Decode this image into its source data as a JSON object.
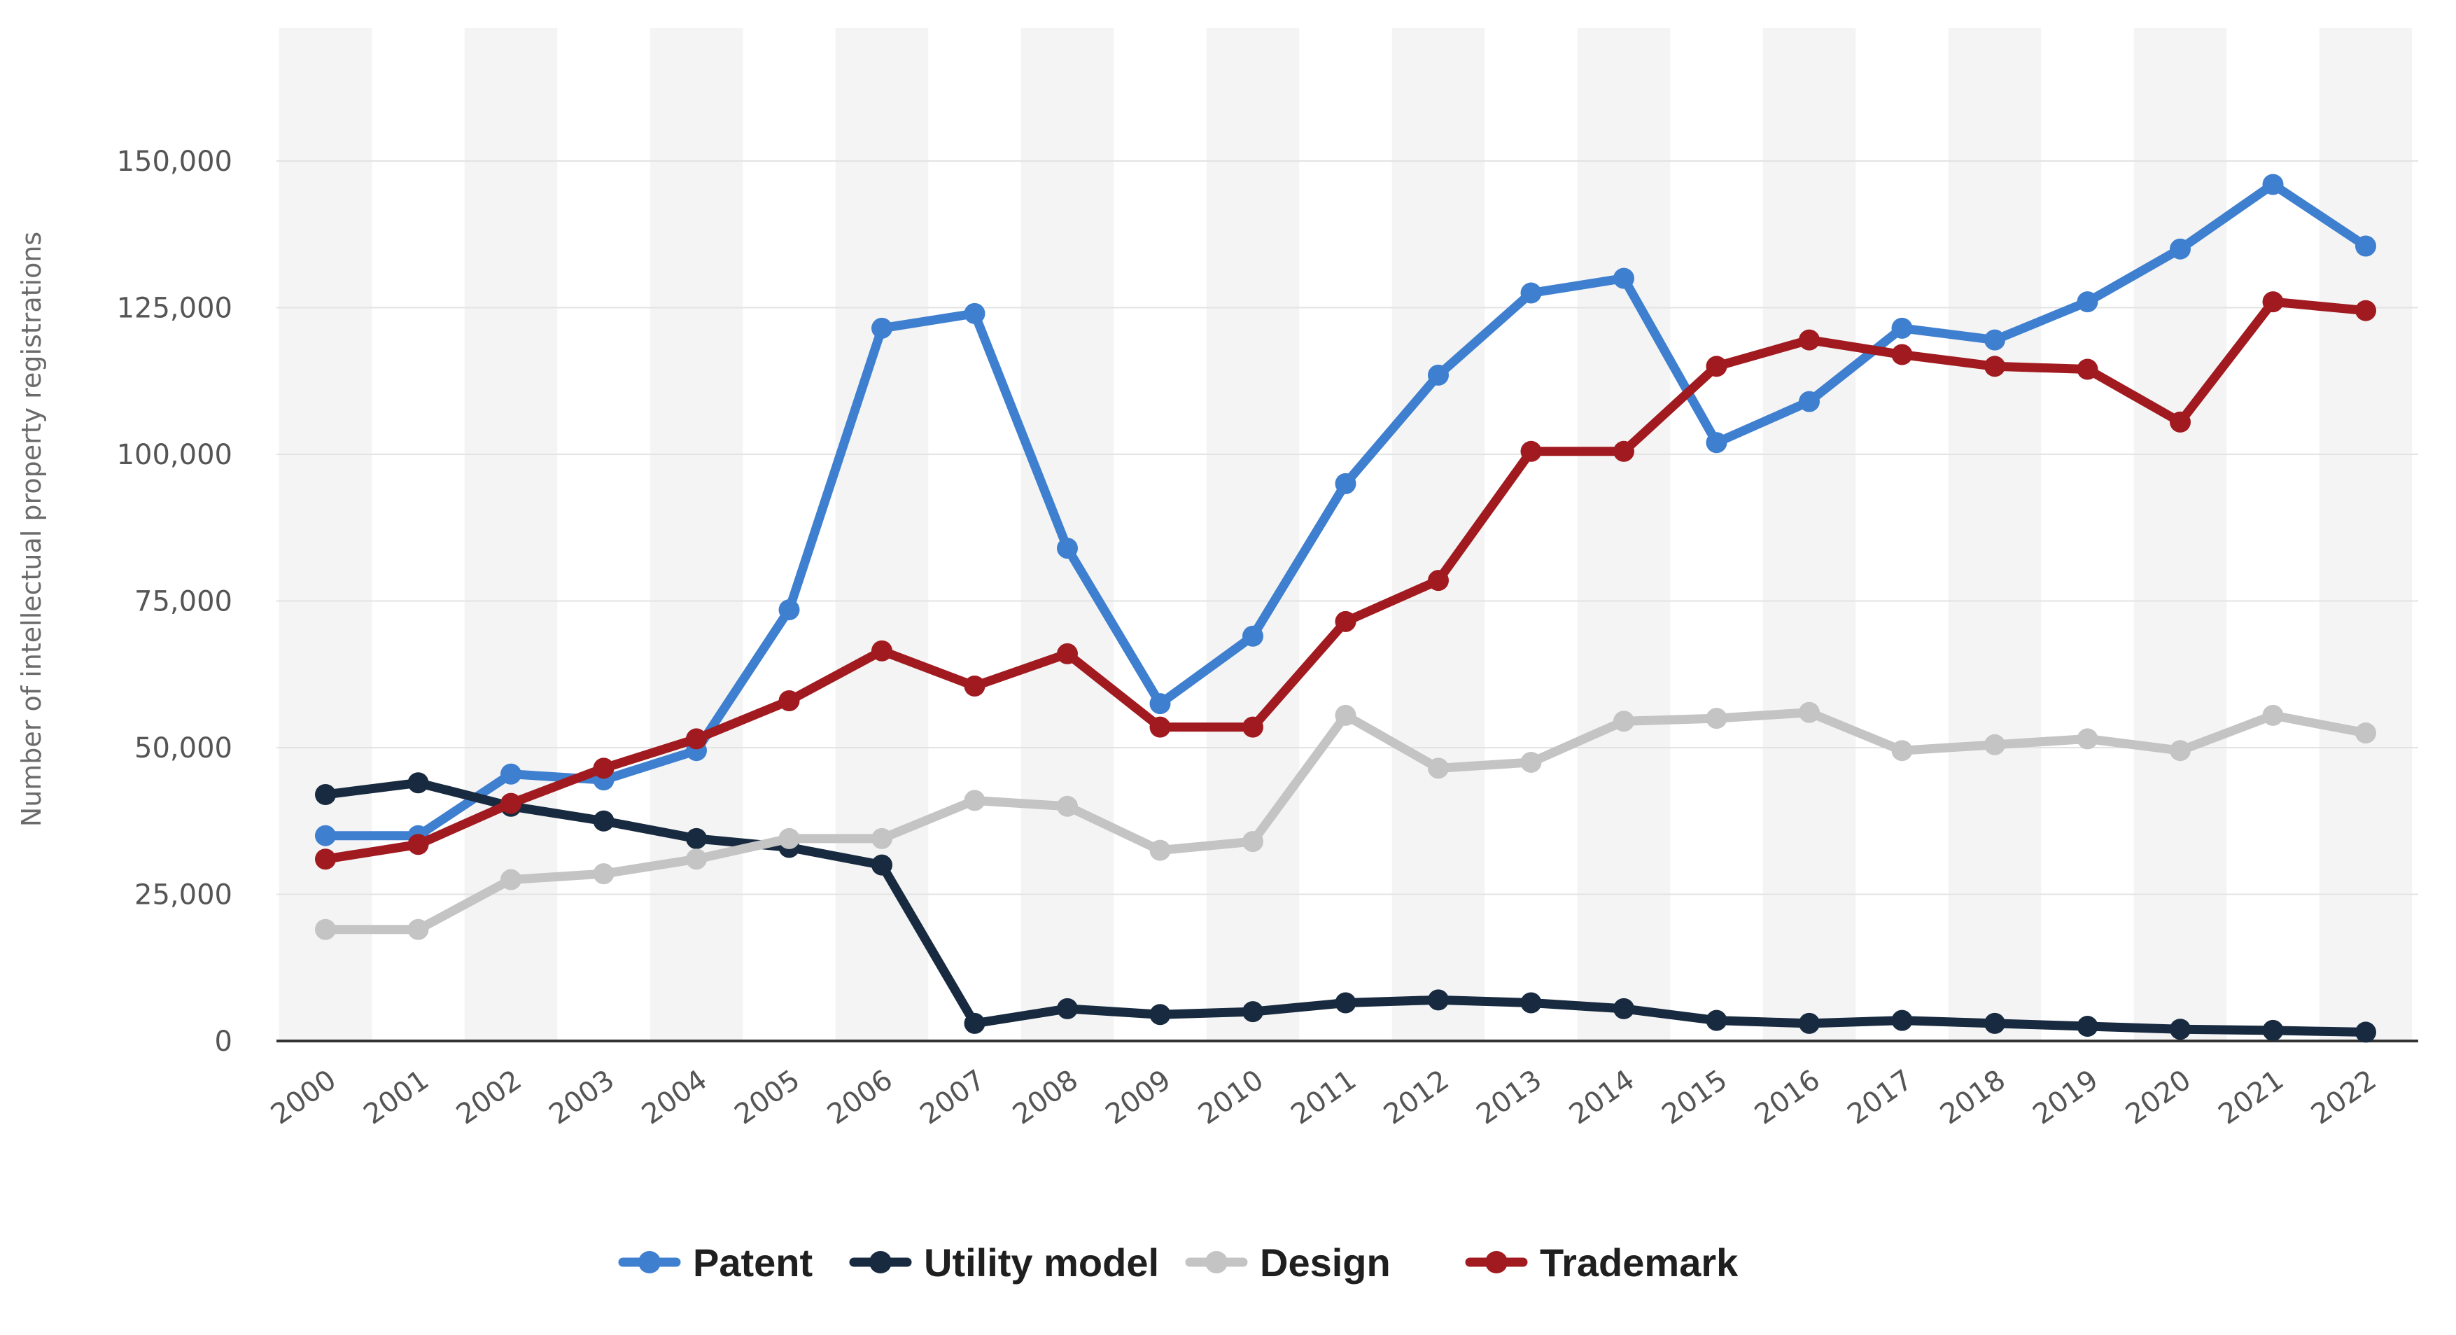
{
  "chart_data": {
    "type": "line",
    "ylabel": "Number of intellectual property registrations",
    "xlabel": "",
    "ylim": [
      0,
      150000
    ],
    "yticks": [
      0,
      25000,
      50000,
      75000,
      100000,
      125000,
      150000
    ],
    "ytick_labels": [
      "0",
      "25,000",
      "50,000",
      "75,000",
      "100,000",
      "125,000",
      "150,000"
    ],
    "categories": [
      "2000",
      "2001",
      "2002",
      "2003",
      "2004",
      "2005",
      "2006",
      "2007",
      "2008",
      "2009",
      "2010",
      "2011",
      "2012",
      "2013",
      "2014",
      "2015",
      "2016",
      "2017",
      "2018",
      "2019",
      "2020",
      "2021",
      "2022"
    ],
    "grid": "horizontal",
    "legend_position": "bottom-center",
    "series": [
      {
        "name": "Patent",
        "color": "#3f7fd0",
        "values": [
          35000,
          35000,
          45500,
          44500,
          49500,
          73500,
          121500,
          124000,
          84000,
          57500,
          69000,
          95000,
          113500,
          127500,
          130000,
          102000,
          109000,
          121500,
          119500,
          126000,
          135000,
          146000,
          135500
        ]
      },
      {
        "name": "Utility model",
        "color": "#182a3f",
        "values": [
          42000,
          44000,
          40000,
          37500,
          34500,
          33000,
          30000,
          3000,
          5500,
          4500,
          5000,
          6500,
          7000,
          6500,
          5500,
          3500,
          3000,
          3500,
          3000,
          2500,
          2000,
          1800,
          1500
        ]
      },
      {
        "name": "Design",
        "color": "#c4c4c4",
        "values": [
          19000,
          19000,
          27500,
          28500,
          31000,
          34500,
          34500,
          41000,
          40000,
          32500,
          34000,
          55500,
          46500,
          47500,
          54500,
          55000,
          56000,
          49500,
          50500,
          51500,
          49500,
          55500,
          52500
        ]
      },
      {
        "name": "Trademark",
        "color": "#a11a1f",
        "values": [
          31000,
          33500,
          40500,
          46500,
          51500,
          58000,
          66500,
          60500,
          66000,
          53500,
          53500,
          71500,
          78500,
          100500,
          100500,
          115000,
          119500,
          117000,
          115000,
          114500,
          105500,
          126000,
          124500
        ]
      }
    ]
  }
}
